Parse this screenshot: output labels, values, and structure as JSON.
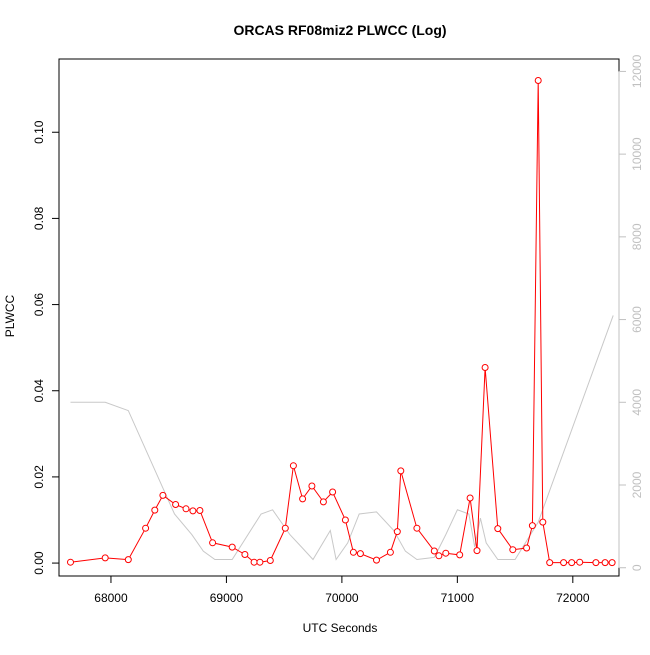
{
  "chart_data": {
    "type": "line",
    "title": "ORCAS RF08miz2 PLWCC (Log)",
    "xlabel": "UTC Seconds",
    "ylabel": "PLWCC",
    "xlim": [
      67550,
      72400
    ],
    "ylim": [
      -0.003,
      0.117
    ],
    "y2lim": [
      -200,
      12300
    ],
    "x_ticks": [
      68000,
      69000,
      70000,
      71000,
      72000
    ],
    "x_tick_labels": [
      "68000",
      "69000",
      "70000",
      "71000",
      "72000"
    ],
    "y_ticks": [
      0.0,
      0.02,
      0.04,
      0.06,
      0.08,
      0.1
    ],
    "y_tick_labels": [
      "0.00",
      "0.02",
      "0.04",
      "0.06",
      "0.08",
      "0.10"
    ],
    "y2_ticks": [
      0,
      2000,
      4000,
      6000,
      8000,
      10000,
      12000
    ],
    "y2_tick_labels": [
      "0",
      "2000",
      "4000",
      "6000",
      "8000",
      "10000",
      "12000"
    ],
    "grid": false,
    "colors": {
      "primary": "#ff0000",
      "secondary": "#c8c8c8",
      "axis": "#000000",
      "secondary_axis": "#c0c0c0"
    },
    "series": [
      {
        "axis": "left",
        "style": "line+circle-markers",
        "color": "#ff0000",
        "x": [
          67650,
          67950,
          68150,
          68300,
          68380,
          68450,
          68560,
          68650,
          68710,
          68770,
          68880,
          69050,
          69160,
          69240,
          69290,
          69380,
          69510,
          69580,
          69660,
          69740,
          69840,
          69920,
          70030,
          70100,
          70160,
          70300,
          70420,
          70480,
          70510,
          70650,
          70800,
          70840,
          70900,
          71020,
          71110,
          71170,
          71240,
          71350,
          71480,
          71600,
          71650,
          71700,
          71740,
          71800,
          71920,
          71990,
          72060,
          72200,
          72280,
          72340
        ],
        "y": [
          0.0002,
          0.0012,
          0.0008,
          0.0081,
          0.0123,
          0.0157,
          0.0136,
          0.0126,
          0.0121,
          0.0122,
          0.0047,
          0.0037,
          0.002,
          0.0002,
          0.0002,
          0.0006,
          0.0081,
          0.0226,
          0.0149,
          0.0179,
          0.0142,
          0.0165,
          0.01,
          0.0025,
          0.0022,
          0.0007,
          0.0025,
          0.0073,
          0.0214,
          0.0081,
          0.0028,
          0.0017,
          0.0023,
          0.0019,
          0.0151,
          0.0029,
          0.0454,
          0.008,
          0.0031,
          0.0035,
          0.0087,
          0.112,
          0.0095,
          0.0001,
          0.0001,
          0.0001,
          0.0002,
          0.0001,
          0.0001,
          0.0001
        ]
      },
      {
        "axis": "right",
        "style": "line",
        "color": "#c8c8c8",
        "x": [
          67650,
          67950,
          68150,
          68550,
          68700,
          68800,
          68900,
          69050,
          69300,
          69400,
          69550,
          69650,
          69750,
          69900,
          69950,
          70050,
          70150,
          70300,
          70450,
          70550,
          70650,
          70800,
          70900,
          71000,
          71100,
          71150,
          71200,
          71250,
          71350,
          71500,
          71700,
          72350
        ],
        "y": [
          4000,
          4000,
          3800,
          1300,
          800,
          400,
          200,
          200,
          1300,
          1400,
          800,
          500,
          200,
          900,
          200,
          600,
          1300,
          1350,
          900,
          400,
          200,
          250,
          800,
          1400,
          1300,
          500,
          1200,
          600,
          200,
          200,
          1100,
          6100
        ]
      }
    ]
  }
}
